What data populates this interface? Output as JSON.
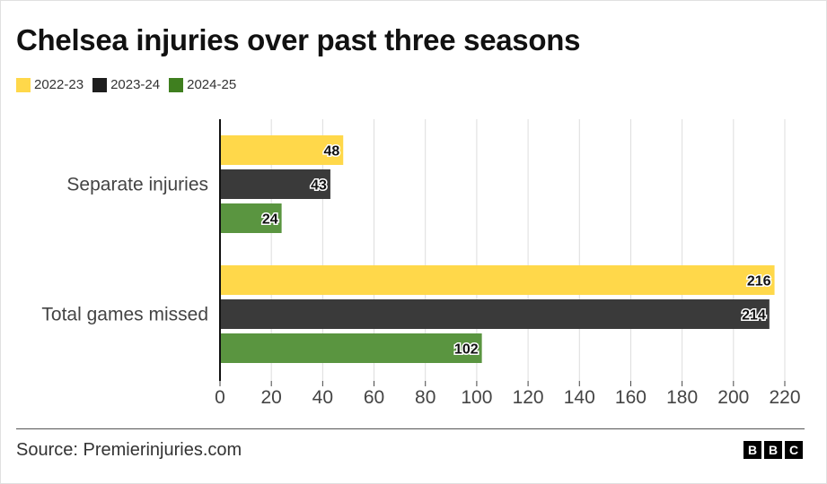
{
  "chart_data": {
    "type": "bar",
    "orientation": "horizontal",
    "title": "Chelsea injuries over past three seasons",
    "categories": [
      "Separate injuries",
      "Total games missed"
    ],
    "series": [
      {
        "name": "2022-23",
        "color": "#FFD84A",
        "values": [
          48,
          216
        ]
      },
      {
        "name": "2023-24",
        "color": "#3A3A3A",
        "values": [
          43,
          214
        ]
      },
      {
        "name": "2024-25",
        "color": "#5A9540",
        "values": [
          24,
          102
        ]
      }
    ],
    "xticks": [
      0,
      20,
      40,
      60,
      80,
      100,
      120,
      140,
      160,
      180,
      200,
      220
    ],
    "xlim": [
      0,
      220
    ],
    "xlabel": "",
    "ylabel": "",
    "grid": true,
    "legend": "top-left"
  },
  "footer": {
    "source": "Source: Premierinjuries.com",
    "logo_letters": [
      "B",
      "B",
      "C"
    ]
  }
}
